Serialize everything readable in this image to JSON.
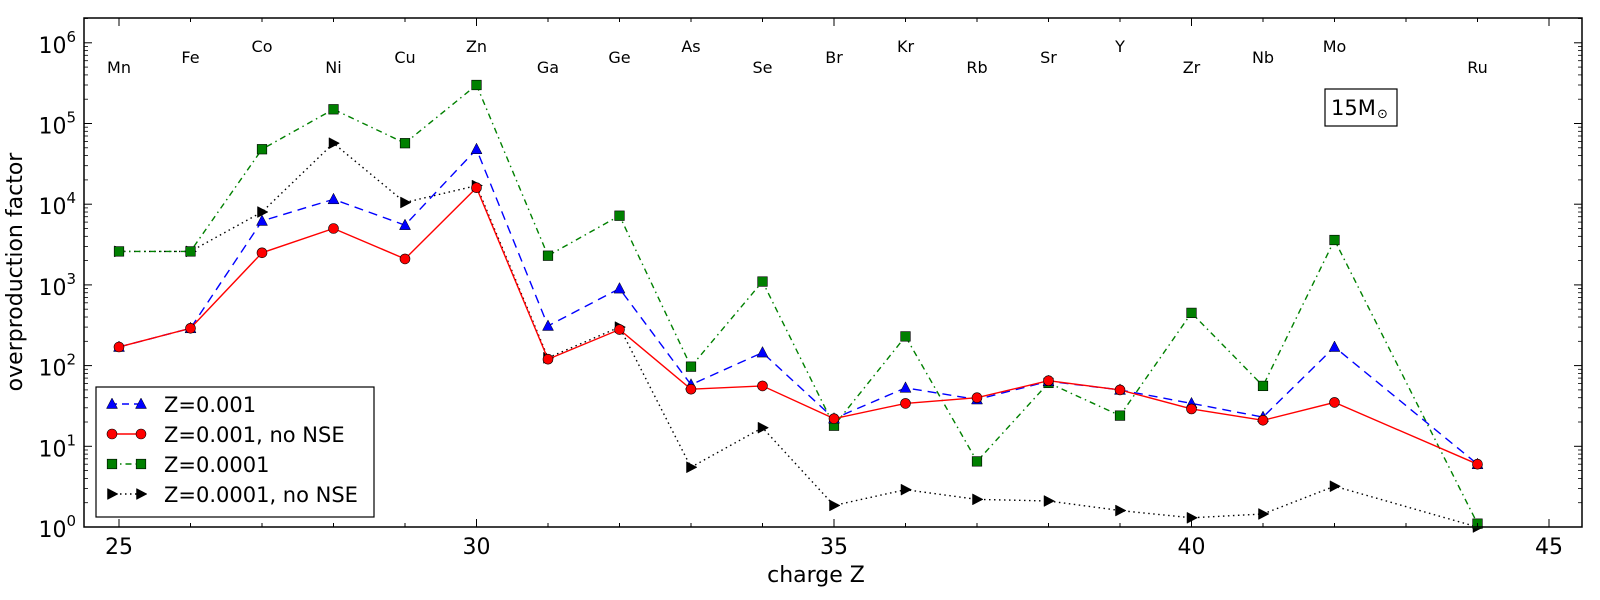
{
  "chart_data": {
    "type": "line",
    "title": "",
    "xlabel": "charge Z",
    "ylabel": "overproduction factor",
    "xlim": [
      24.5,
      45.5
    ],
    "ylim_log10": [
      0,
      6.3
    ],
    "yscale": "log",
    "grid": false,
    "x_ticks": [
      25,
      30,
      35,
      40,
      45
    ],
    "x_tick_labels": [
      "25",
      "30",
      "35",
      "40",
      "45"
    ],
    "y_ticks_exp": [
      0,
      1,
      2,
      3,
      4,
      5,
      6
    ],
    "y_tick_base": "10",
    "y_tick_exps": [
      "0",
      "1",
      "2",
      "3",
      "4",
      "5",
      "6"
    ],
    "element_labels": [
      {
        "z": 25,
        "label": "Mn",
        "row": 2
      },
      {
        "z": 26,
        "label": "Fe",
        "row": 1
      },
      {
        "z": 27,
        "label": "Co",
        "row": 0
      },
      {
        "z": 28,
        "label": "Ni",
        "row": 2
      },
      {
        "z": 29,
        "label": "Cu",
        "row": 1
      },
      {
        "z": 30,
        "label": "Zn",
        "row": 0
      },
      {
        "z": 31,
        "label": "Ga",
        "row": 2
      },
      {
        "z": 32,
        "label": "Ge",
        "row": 1
      },
      {
        "z": 33,
        "label": "As",
        "row": 0
      },
      {
        "z": 34,
        "label": "Se",
        "row": 2
      },
      {
        "z": 35,
        "label": "Br",
        "row": 1
      },
      {
        "z": 36,
        "label": "Kr",
        "row": 0
      },
      {
        "z": 37,
        "label": "Rb",
        "row": 2
      },
      {
        "z": 38,
        "label": "Sr",
        "row": 1
      },
      {
        "z": 39,
        "label": "Y",
        "row": 0
      },
      {
        "z": 40,
        "label": "Zr",
        "row": 2
      },
      {
        "z": 41,
        "label": "Nb",
        "row": 1
      },
      {
        "z": 42,
        "label": "Mo",
        "row": 0
      },
      {
        "z": 44,
        "label": "Ru",
        "row": 2
      }
    ],
    "annotation": {
      "text": "15M",
      "subscript": "⊙"
    },
    "legend_position": "lower-left",
    "x": [
      25,
      26,
      27,
      28,
      29,
      30,
      31,
      32,
      33,
      34,
      35,
      36,
      37,
      38,
      39,
      40,
      41,
      42,
      44
    ],
    "series": [
      {
        "name": "Z=0.001",
        "color": "#0000ff",
        "marker": "triangle-up",
        "line": "dashed",
        "values": [
          170,
          290,
          6200,
          11500,
          5500,
          48000,
          310,
          900,
          58,
          145,
          22,
          53,
          38,
          64,
          50,
          34,
          23,
          170,
          6
        ]
      },
      {
        "name": "Z=0.001, no NSE",
        "color": "#ff0000",
        "marker": "circle",
        "line": "solid",
        "values": [
          170,
          290,
          2500,
          5000,
          2100,
          16000,
          120,
          280,
          51,
          56,
          22,
          34,
          40,
          65,
          50,
          29,
          21,
          35,
          6
        ]
      },
      {
        "name": "Z=0.0001",
        "color": "#008000",
        "marker": "square",
        "line": "dashdot",
        "values": [
          2600,
          2600,
          48000,
          150000,
          57000,
          300000,
          2300,
          7200,
          97,
          1100,
          18,
          230,
          6.5,
          61,
          24,
          450,
          56,
          3600,
          1.1
        ]
      },
      {
        "name": "Z=0.0001, no NSE",
        "color": "#000000",
        "marker": "triangle-right",
        "line": "dotted",
        "values": [
          2600,
          2600,
          8000,
          57000,
          10500,
          17000,
          125,
          300,
          5.5,
          17,
          1.85,
          2.9,
          2.2,
          2.1,
          1.6,
          1.3,
          1.45,
          3.2,
          1.0
        ]
      }
    ]
  }
}
